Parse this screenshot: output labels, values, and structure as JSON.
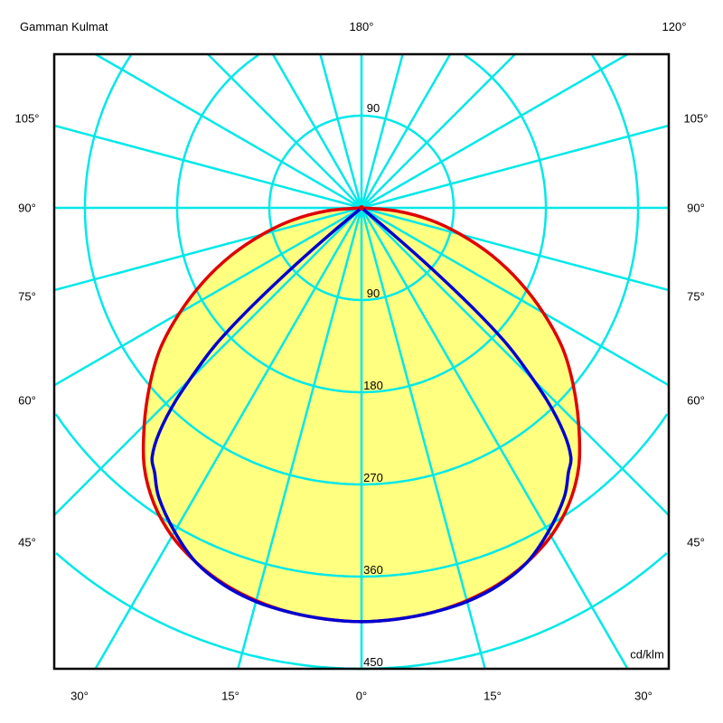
{
  "header": {
    "left": "Gamman Kulmat",
    "center": "180°",
    "right": "120°"
  },
  "side_labels": [
    "105°",
    "90°",
    "75°",
    "60°",
    "45°"
  ],
  "bottom_labels": [
    "30°",
    "15°",
    "0°",
    "15°",
    "30°"
  ],
  "unit": "cd/klm",
  "colors": {
    "grid": "#00e8e8",
    "fill": "#ffff80",
    "c0_180": "#e00000",
    "c90_270": "#0000d0",
    "frame": "#000000"
  },
  "chart_data": {
    "type": "polar",
    "unit": "cd/klm",
    "radial_ticks": [
      90,
      180,
      270,
      360,
      450
    ],
    "radial_tick_labels": [
      "90",
      "180",
      "270",
      "360",
      "450"
    ],
    "upper_tick_label": "90",
    "angle_step_deg": 15,
    "rmax": 450,
    "grid": true,
    "symmetric": true,
    "series": [
      {
        "color": "#e00000",
        "filled": true,
        "gamma": [
          0,
          5,
          10,
          15,
          20,
          25,
          30,
          35,
          40,
          45,
          50,
          55,
          60,
          65,
          70,
          75,
          80,
          85,
          90
        ],
        "values": [
          404,
          403,
          401,
          397,
          391,
          382,
          370,
          353,
          330,
          300,
          270,
          240,
          205,
          170,
          135,
          100,
          68,
          34,
          0
        ]
      },
      {
        "color": "#0000d0",
        "filled": false,
        "gamma": [
          0,
          5,
          10,
          15,
          20,
          25,
          30,
          35,
          38,
          40,
          42,
          44,
          46,
          47,
          48,
          49,
          50,
          51
        ],
        "values": [
          404,
          403,
          401,
          398,
          392,
          382,
          365,
          345,
          328,
          318,
          295,
          260,
          215,
          190,
          150,
          95,
          40,
          0
        ]
      }
    ]
  }
}
